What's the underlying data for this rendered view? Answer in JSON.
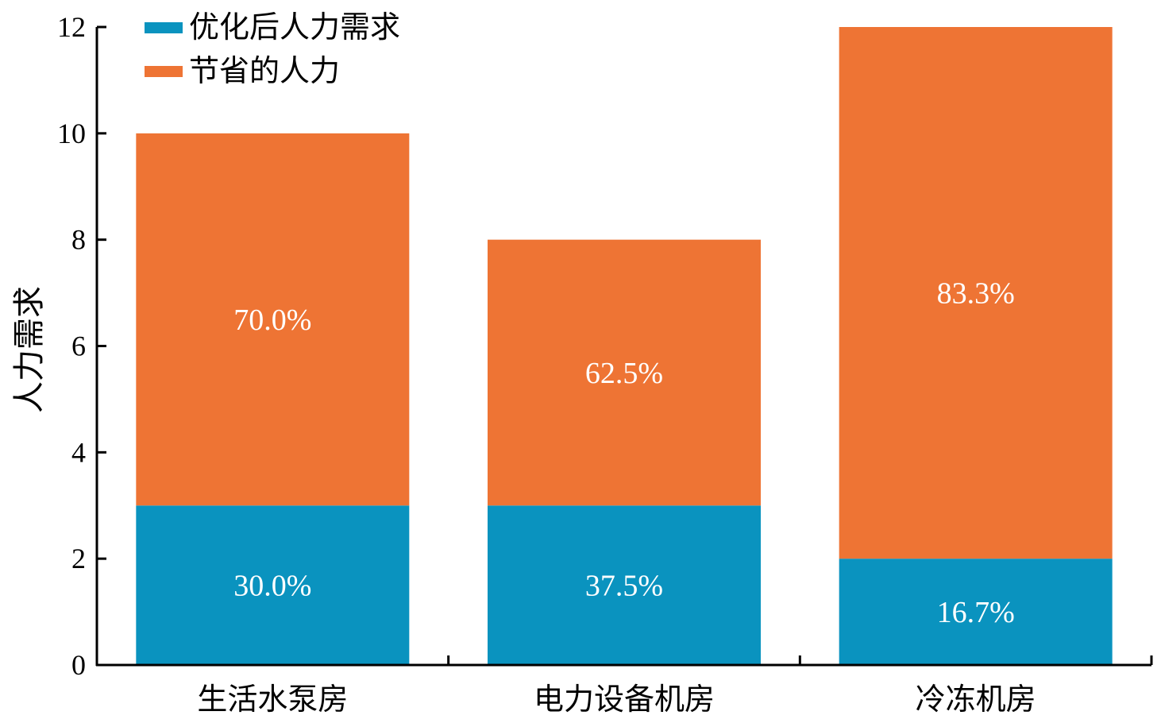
{
  "chart_data": {
    "type": "bar",
    "stacked": true,
    "categories": [
      "生活水泵房",
      "电力设备机房",
      "冷冻机房"
    ],
    "series": [
      {
        "name": "优化后人力需求",
        "values": [
          3,
          3,
          2
        ],
        "labels": [
          "30.0%",
          "37.5%",
          "16.7%"
        ],
        "color": "#0a93bf"
      },
      {
        "name": "节省的人力",
        "values": [
          7,
          5,
          10
        ],
        "labels": [
          "70.0%",
          "62.5%",
          "83.3%"
        ],
        "color": "#ee7434"
      }
    ],
    "title": "",
    "xlabel": "",
    "ylabel": "人力需求",
    "ylim": [
      0,
      12
    ],
    "yticks": [
      "0",
      "2",
      "4",
      "6",
      "8",
      "10",
      "12"
    ],
    "grid": false,
    "legend_position": "top-left"
  }
}
